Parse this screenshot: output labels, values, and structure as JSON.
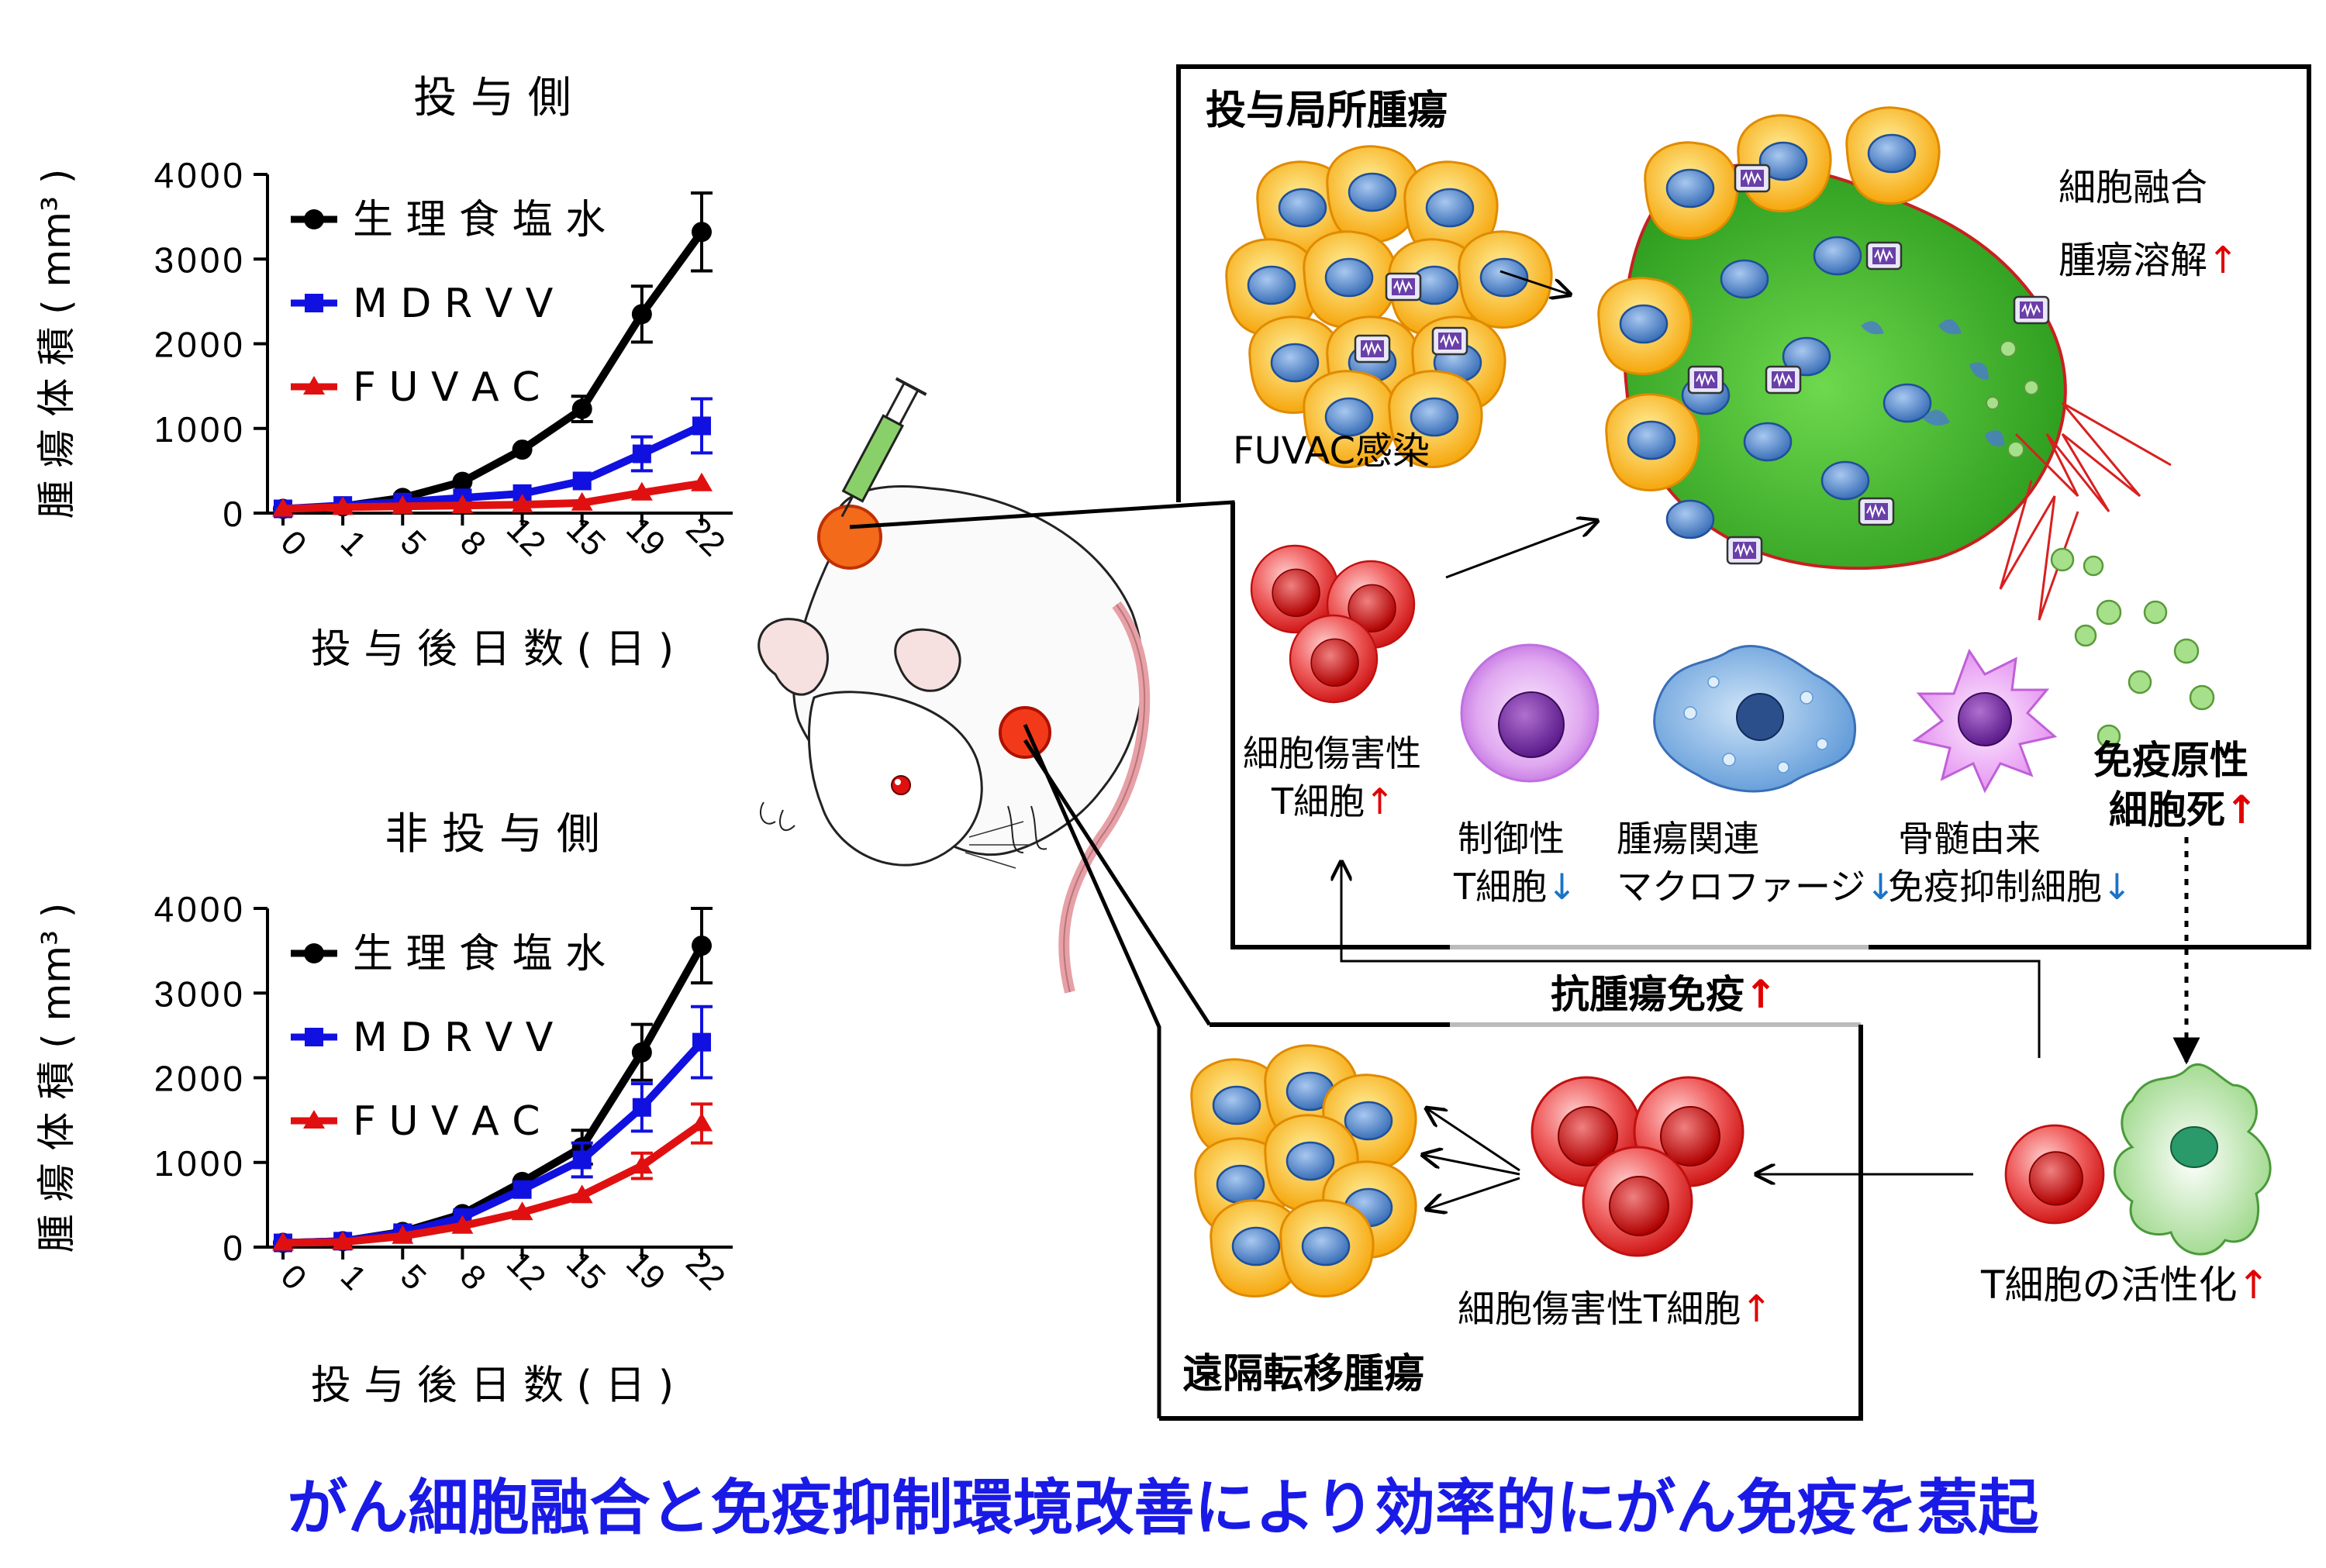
{
  "caption": "がん細胞融合と免疫抑制環境改善により効率的にがん免疫を惹起",
  "colors": {
    "saline": "#000000",
    "mdrvv": "#1010e0",
    "fuvac": "#e01010",
    "caption": "#1a1ae6",
    "up_arrow": "#e00000",
    "down_arrow": "#1a73c8"
  },
  "chart_data": [
    {
      "type": "line",
      "title": "投 与 側",
      "xlabel": "投 与 後 日 数 ( 日 )",
      "ylabel": "腫 瘍 体 積 ( mm³ )",
      "categories": [
        "0",
        "1",
        "5",
        "8",
        "12",
        "15",
        "19",
        "22"
      ],
      "ylim": [
        0,
        4000
      ],
      "yticks": [
        "0",
        "1000",
        "2000",
        "3000",
        "4000"
      ],
      "legend_position": "top-left",
      "series": [
        {
          "name": "生 理 食 塩 水",
          "values": [
            50,
            80,
            180,
            370,
            750,
            1230,
            2350,
            3320
          ],
          "errors": [
            0,
            0,
            0,
            0,
            0,
            150,
            330,
            460
          ]
        },
        {
          "name": "M D R V V",
          "values": [
            50,
            90,
            130,
            180,
            230,
            380,
            700,
            1030
          ],
          "errors": [
            0,
            0,
            0,
            0,
            0,
            0,
            200,
            320
          ]
        },
        {
          "name": "F U V A C",
          "values": [
            50,
            70,
            80,
            90,
            100,
            120,
            240,
            350
          ],
          "errors": [
            0,
            0,
            0,
            0,
            0,
            0,
            0,
            0
          ]
        }
      ]
    },
    {
      "type": "line",
      "title": "非 投 与 側",
      "xlabel": "投 与 後 日 数 ( 日 )",
      "ylabel": "腫 瘍 体 積 ( mm³ )",
      "categories": [
        "0",
        "1",
        "5",
        "8",
        "12",
        "15",
        "19",
        "22"
      ],
      "ylim": [
        0,
        4000
      ],
      "yticks": [
        "0",
        "1000",
        "2000",
        "3000",
        "4000"
      ],
      "legend_position": "top-left",
      "series": [
        {
          "name": "生 理 食 塩 水",
          "values": [
            50,
            70,
            180,
            390,
            770,
            1180,
            2300,
            3560
          ],
          "errors": [
            0,
            0,
            0,
            0,
            0,
            200,
            330,
            440
          ]
        },
        {
          "name": "M D R V V",
          "values": [
            50,
            70,
            170,
            350,
            680,
            1030,
            1650,
            2420
          ],
          "errors": [
            0,
            0,
            0,
            0,
            0,
            200,
            280,
            420
          ]
        },
        {
          "name": "F U V A C",
          "values": [
            50,
            60,
            130,
            250,
            410,
            610,
            960,
            1460
          ],
          "errors": [
            0,
            0,
            0,
            0,
            0,
            0,
            150,
            230
          ]
        }
      ]
    }
  ],
  "diagram": {
    "local_tumor_title": "投与局所腫瘍",
    "distant_tumor_title": "遠隔転移腫瘍",
    "fuvac_infection": "FUVAC感染",
    "cell_fusion": "細胞融合",
    "tumor_lysis": "腫瘍溶解",
    "cytotoxic_t_line1": "細胞傷害性",
    "cytotoxic_t_line2": "T細胞",
    "treg_line1": "制御性",
    "treg_line2": "T細胞",
    "tam_line1": "腫瘍関連",
    "tam_line2": "マクロファージ",
    "mdsc_line1": "骨髄由来",
    "mdsc_line2": "免疫抑制細胞",
    "icd_line1": "免疫原性",
    "icd_line2": "細胞死",
    "antitumor_immunity": "抗腫瘍免疫",
    "cytotoxic_t_distant": "細胞傷害性T細胞",
    "t_activation": "T細胞の活性化",
    "arrow_up": "↑",
    "arrow_down": "↓"
  }
}
